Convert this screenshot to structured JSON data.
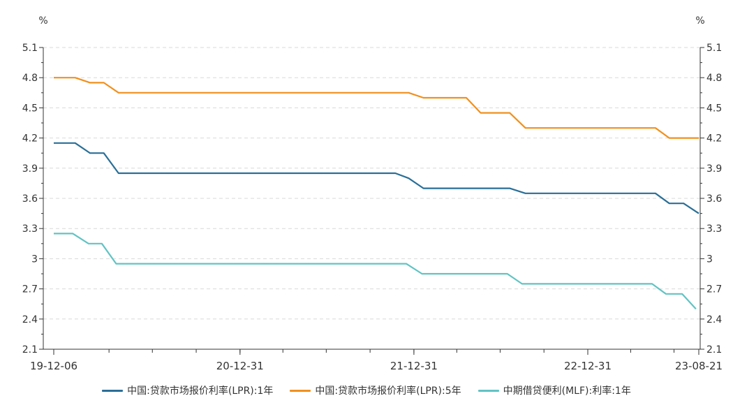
{
  "chart_data": {
    "type": "line",
    "left_unit": "%",
    "right_unit": "%",
    "ylim": [
      2.1,
      5.1
    ],
    "y_ticks": [
      "5.1",
      "4.8",
      "4.5",
      "4.2",
      "3.9",
      "3.6",
      "3.3",
      "3",
      "2.7",
      "2.4",
      "2.1"
    ],
    "x_tick_labels": [
      "19-12-06",
      "20-12-31",
      "21-12-31",
      "22-12-31",
      "23-08-21"
    ],
    "grid": true,
    "legend_position": "bottom",
    "series": [
      {
        "name": "中国:贷款市场报价利率(LPR):1年",
        "color": "#2a6f97",
        "points": [
          [
            "2019-12-06",
            4.15
          ],
          [
            "2020-01-20",
            4.15
          ],
          [
            "2020-02-20",
            4.05
          ],
          [
            "2020-03-20",
            4.05
          ],
          [
            "2020-04-20",
            3.85
          ],
          [
            "2021-11-22",
            3.85
          ],
          [
            "2021-12-20",
            3.8
          ],
          [
            "2022-01-20",
            3.7
          ],
          [
            "2022-07-20",
            3.7
          ],
          [
            "2022-08-22",
            3.65
          ],
          [
            "2023-05-22",
            3.65
          ],
          [
            "2023-06-20",
            3.55
          ],
          [
            "2023-07-20",
            3.55
          ],
          [
            "2023-08-21",
            3.45
          ]
        ]
      },
      {
        "name": "中国:贷款市场报价利率(LPR):5年",
        "color": "#f0901e",
        "points": [
          [
            "2019-12-06",
            4.8
          ],
          [
            "2020-01-20",
            4.8
          ],
          [
            "2020-02-20",
            4.75
          ],
          [
            "2020-03-20",
            4.75
          ],
          [
            "2020-04-20",
            4.65
          ],
          [
            "2021-12-20",
            4.65
          ],
          [
            "2022-01-20",
            4.6
          ],
          [
            "2022-04-20",
            4.6
          ],
          [
            "2022-05-20",
            4.45
          ],
          [
            "2022-07-20",
            4.45
          ],
          [
            "2022-08-22",
            4.3
          ],
          [
            "2023-05-22",
            4.3
          ],
          [
            "2023-06-20",
            4.2
          ],
          [
            "2023-08-21",
            4.2
          ]
        ]
      },
      {
        "name": "中期借贷便利(MLF):利率:1年",
        "color": "#62c3c3",
        "points": [
          [
            "2019-12-06",
            3.25
          ],
          [
            "2020-01-15",
            3.25
          ],
          [
            "2020-02-17",
            3.15
          ],
          [
            "2020-03-16",
            3.15
          ],
          [
            "2020-04-15",
            2.95
          ],
          [
            "2021-12-15",
            2.95
          ],
          [
            "2022-01-17",
            2.85
          ],
          [
            "2022-07-15",
            2.85
          ],
          [
            "2022-08-15",
            2.75
          ],
          [
            "2023-05-15",
            2.75
          ],
          [
            "2023-06-13",
            2.65
          ],
          [
            "2023-07-17",
            2.65
          ],
          [
            "2023-08-15",
            2.5
          ]
        ]
      }
    ]
  }
}
